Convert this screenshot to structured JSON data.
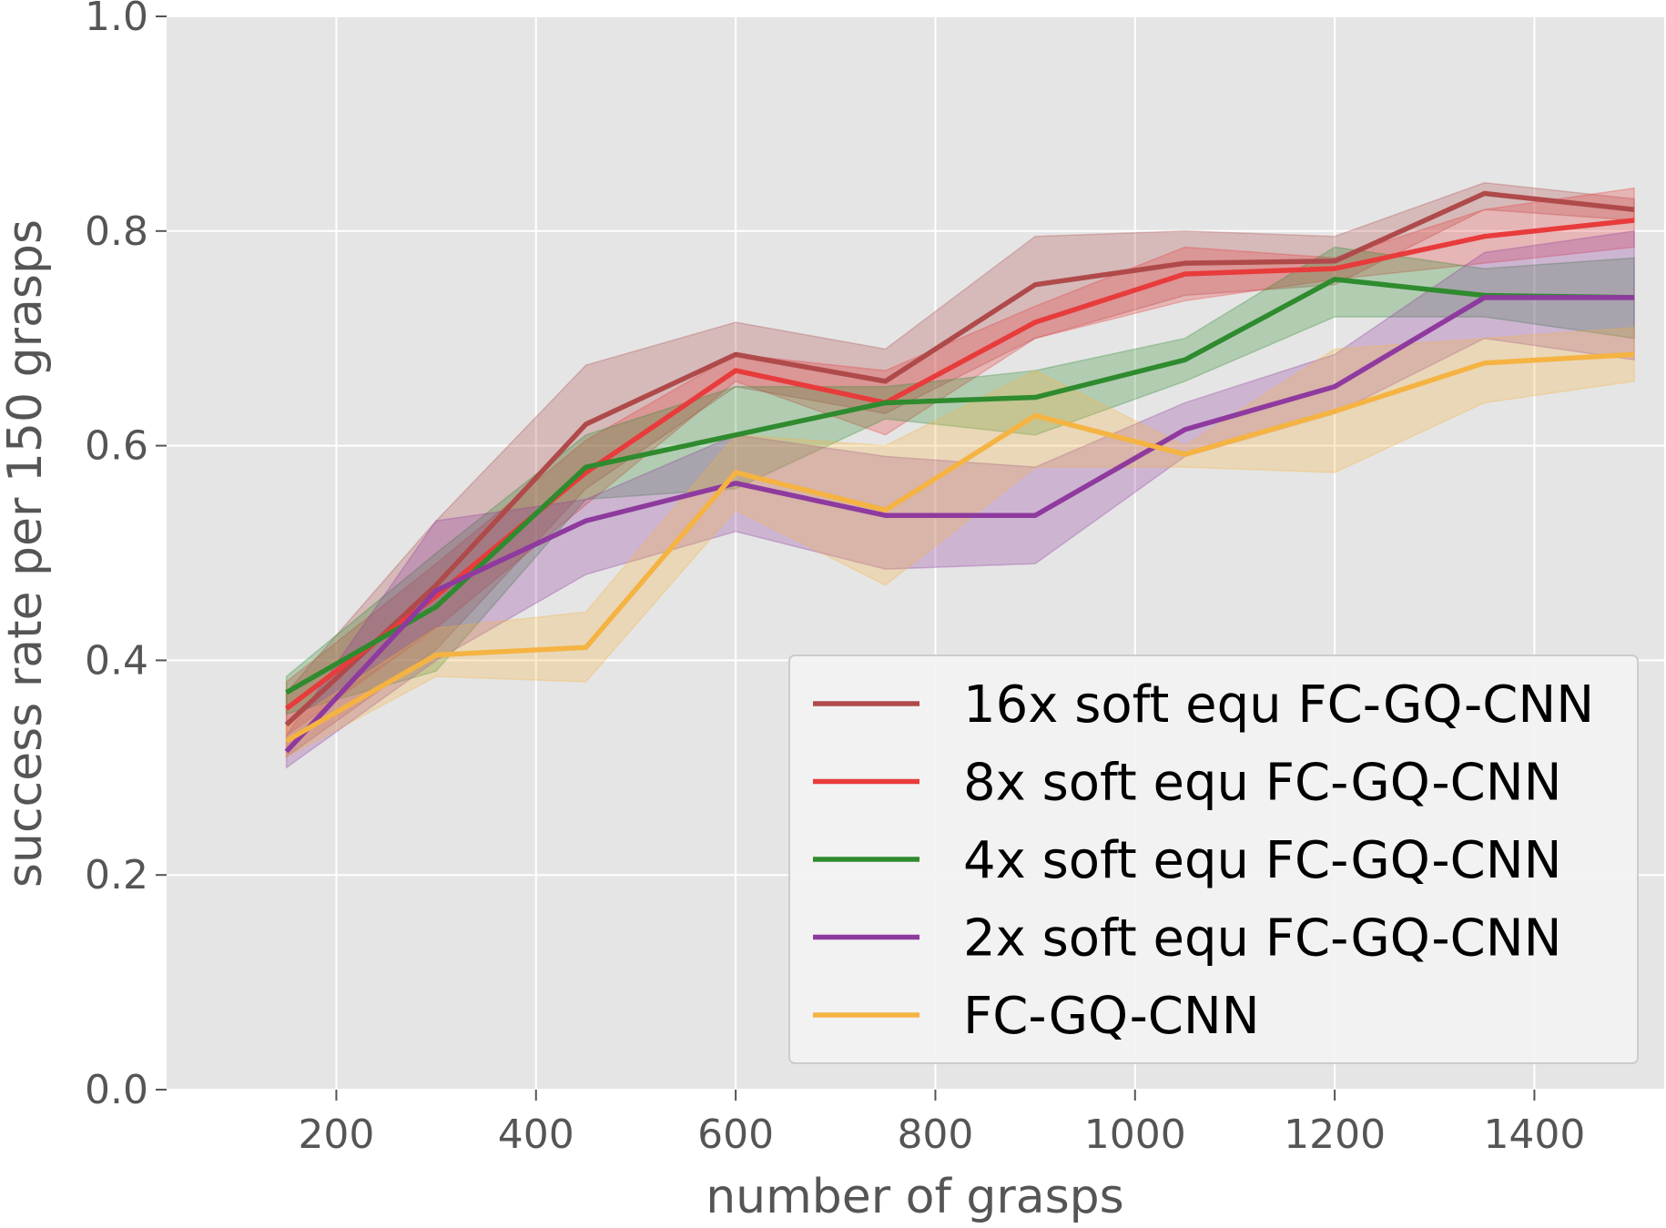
{
  "chart_data": {
    "type": "line",
    "title": "",
    "xlabel": "number of grasps",
    "ylabel": "success rate per 150 grasps",
    "xlim": [
      30,
      1530
    ],
    "ylim": [
      0.0,
      1.0
    ],
    "xticks": [
      200,
      400,
      600,
      800,
      1000,
      1200,
      1400
    ],
    "yticks": [
      0.0,
      0.2,
      0.4,
      0.6,
      0.8,
      1.0
    ],
    "ytick_labels": [
      "0.0",
      "0.2",
      "0.4",
      "0.6",
      "0.8",
      "1.0"
    ],
    "grid": true,
    "legend_position": "lower-right",
    "x": [
      150,
      300,
      450,
      600,
      750,
      900,
      1050,
      1200,
      1350,
      1500
    ],
    "series": [
      {
        "name": "16x soft equ FC-GQ-CNN",
        "color": "#b04a4a",
        "values": [
          0.34,
          0.47,
          0.62,
          0.685,
          0.66,
          0.75,
          0.77,
          0.772,
          0.835,
          0.82
        ],
        "lower": [
          0.31,
          0.41,
          0.56,
          0.655,
          0.63,
          0.7,
          0.74,
          0.75,
          0.82,
          0.81
        ],
        "upper": [
          0.37,
          0.53,
          0.675,
          0.715,
          0.69,
          0.795,
          0.8,
          0.795,
          0.845,
          0.83
        ]
      },
      {
        "name": "8x soft equ FC-GQ-CNN",
        "color": "#e83b3b",
        "values": [
          0.355,
          0.46,
          0.575,
          0.67,
          0.64,
          0.715,
          0.76,
          0.765,
          0.795,
          0.81
        ],
        "lower": [
          0.33,
          0.43,
          0.545,
          0.66,
          0.61,
          0.7,
          0.735,
          0.755,
          0.77,
          0.785
        ],
        "upper": [
          0.38,
          0.49,
          0.605,
          0.685,
          0.67,
          0.73,
          0.785,
          0.775,
          0.82,
          0.84
        ]
      },
      {
        "name": "4x soft equ FC-GQ-CNN",
        "color": "#2e8b2e",
        "values": [
          0.37,
          0.45,
          0.58,
          0.61,
          0.64,
          0.645,
          0.68,
          0.755,
          0.74,
          0.738
        ],
        "lower": [
          0.35,
          0.39,
          0.55,
          0.56,
          0.625,
          0.61,
          0.66,
          0.72,
          0.72,
          0.7
        ],
        "upper": [
          0.385,
          0.5,
          0.61,
          0.655,
          0.655,
          0.67,
          0.7,
          0.785,
          0.765,
          0.775
        ]
      },
      {
        "name": "2x soft equ FC-GQ-CNN",
        "color": "#8e3a9e",
        "values": [
          0.315,
          0.465,
          0.53,
          0.565,
          0.535,
          0.535,
          0.615,
          0.655,
          0.738,
          0.738
        ],
        "lower": [
          0.3,
          0.4,
          0.48,
          0.52,
          0.485,
          0.49,
          0.59,
          0.63,
          0.7,
          0.68
        ],
        "upper": [
          0.33,
          0.53,
          0.55,
          0.61,
          0.59,
          0.58,
          0.64,
          0.685,
          0.78,
          0.8
        ]
      },
      {
        "name": "FC-GQ-CNN",
        "color": "#f5b342",
        "values": [
          0.325,
          0.405,
          0.412,
          0.575,
          0.54,
          0.628,
          0.592,
          0.632,
          0.677,
          0.685
        ],
        "lower": [
          0.31,
          0.385,
          0.38,
          0.54,
          0.47,
          0.58,
          0.58,
          0.575,
          0.64,
          0.66
        ],
        "upper": [
          0.34,
          0.43,
          0.445,
          0.61,
          0.6,
          0.67,
          0.6,
          0.69,
          0.7,
          0.71
        ]
      }
    ]
  }
}
